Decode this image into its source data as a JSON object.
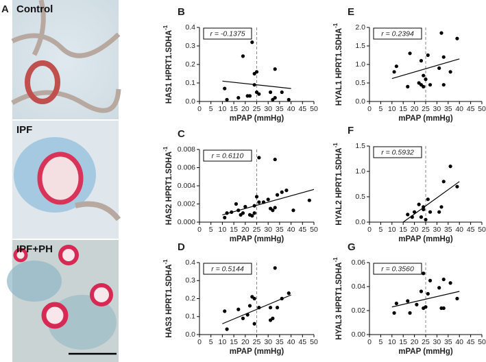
{
  "panel_a": {
    "letter": "A",
    "images": [
      "Control",
      "IPF",
      "IPF+PH"
    ]
  },
  "chart_data": [
    {
      "type": "scatter",
      "panel": "B",
      "ylabel": "HAS1 HPRT1.SDHA",
      "ylabel_sup": "-1",
      "xlabel": "mPAP (mmHg)",
      "annotation": "r = -0.1375",
      "color": "#000000",
      "x": [
        11,
        12,
        17,
        19,
        21,
        23,
        24,
        24,
        25,
        26,
        25,
        31,
        32,
        33,
        33,
        36,
        39,
        22
      ],
      "y": [
        0.07,
        0.01,
        0.02,
        0.245,
        0.03,
        0.32,
        0.15,
        0.09,
        0.16,
        0.04,
        0.05,
        0.05,
        0.01,
        0.175,
        0.02,
        0.05,
        0.01,
        0.03
      ],
      "fit": {
        "x": [
          10,
          40
        ],
        "y": [
          0.11,
          0.07
        ]
      },
      "ref_x": 25,
      "xlim": [
        0,
        50
      ],
      "ylim": [
        0,
        0.4
      ],
      "xticks": [
        0,
        5,
        10,
        15,
        20,
        25,
        30,
        35,
        40,
        45,
        50
      ],
      "yticks": [
        {
          "value": 0,
          "label": "0.0"
        },
        {
          "value": 0.1,
          "label": "0.1"
        },
        {
          "value": 0.2,
          "label": "0.2"
        },
        {
          "value": 0.3,
          "label": "0.3"
        },
        {
          "value": 0.4,
          "label": "0.4"
        }
      ]
    },
    {
      "type": "scatter",
      "panel": "C",
      "ylabel": "HAS2 HPRT1.SDHA",
      "ylabel_sup": "-1",
      "xlabel": "mPAP (mmHg)",
      "annotation": "r = 0.6110",
      "color": "#000000",
      "x": [
        11,
        12,
        14,
        16,
        17,
        18,
        19,
        20,
        22,
        23,
        24,
        24,
        25,
        26,
        26,
        30,
        31,
        32,
        33,
        33,
        34,
        36,
        38,
        41,
        48,
        28
      ],
      "y": [
        0.0005,
        0.001,
        0.0011,
        0.002,
        0.0013,
        0.0008,
        0.001,
        0.0017,
        0.0008,
        0.0007,
        0.001,
        0.0018,
        0.0028,
        0.0071,
        0.0022,
        0.0025,
        0.0015,
        0.0013,
        0.0069,
        0.0016,
        0.003,
        0.0033,
        0.0035,
        0.0013,
        0.0024,
        0.0022
      ],
      "fit": {
        "x": [
          10,
          50
        ],
        "y": [
          0.0008,
          0.0036
        ]
      },
      "ref_x": 25,
      "xlim": [
        0,
        50
      ],
      "ylim": [
        0,
        0.008
      ],
      "xticks": [
        0,
        5,
        10,
        15,
        20,
        25,
        30,
        35,
        40,
        45,
        50
      ],
      "yticks": [
        {
          "value": 0,
          "label": "0.000"
        },
        {
          "value": 0.002,
          "label": "0.002"
        },
        {
          "value": 0.004,
          "label": "0.004"
        },
        {
          "value": 0.006,
          "label": "0.006"
        },
        {
          "value": 0.008,
          "label": "0.008"
        }
      ]
    },
    {
      "type": "scatter",
      "panel": "D",
      "ylabel": "HAS3 HPRT1.SDHA",
      "ylabel_sup": "-1",
      "xlabel": "mPAP (mmHg)",
      "annotation": "r = 0.5144",
      "color": "#000000",
      "x": [
        11,
        12,
        17,
        19,
        21,
        22,
        23,
        24,
        24,
        26,
        31,
        31,
        32,
        33,
        34,
        36,
        39
      ],
      "y": [
        0.13,
        0.03,
        0.14,
        0.09,
        0.11,
        0.16,
        0.21,
        0.06,
        0.2,
        0.15,
        0.15,
        0.08,
        0.09,
        0.37,
        0.15,
        0.2,
        0.23
      ],
      "fit": {
        "x": [
          10,
          40
        ],
        "y": [
          0.06,
          0.22
        ]
      },
      "ref_x": 25,
      "xlim": [
        0,
        50
      ],
      "ylim": [
        0,
        0.4
      ],
      "xticks": [
        0,
        5,
        10,
        15,
        20,
        25,
        30,
        35,
        40,
        45,
        50
      ],
      "yticks": [
        {
          "value": 0,
          "label": "0.0"
        },
        {
          "value": 0.1,
          "label": "0.1"
        },
        {
          "value": 0.2,
          "label": "0.2"
        },
        {
          "value": 0.3,
          "label": "0.3"
        },
        {
          "value": 0.4,
          "label": "0.4"
        }
      ]
    },
    {
      "type": "scatter",
      "panel": "E",
      "ylabel": "HYAL1 HPRT1.SDHA",
      "ylabel_sup": "-1",
      "xlabel": "mPAP (mmHg)",
      "annotation": "r = 0.2394",
      "color": "#000000",
      "x": [
        11,
        12,
        17,
        18,
        22,
        23,
        23,
        24,
        24,
        25,
        26,
        27,
        31,
        32,
        33,
        33,
        36,
        39
      ],
      "y": [
        0.8,
        0.95,
        0.4,
        1.3,
        0.5,
        0.45,
        1.1,
        0.7,
        0.4,
        0.6,
        1.25,
        0.45,
        0.9,
        1.85,
        0.45,
        1.2,
        0.8,
        1.7
      ],
      "fit": {
        "x": [
          10,
          40
        ],
        "y": [
          0.62,
          1.15
        ]
      },
      "ref_x": 25,
      "xlim": [
        0,
        50
      ],
      "ylim": [
        0,
        2
      ],
      "xticks": [
        0,
        5,
        10,
        15,
        20,
        25,
        30,
        35,
        40,
        45,
        50
      ],
      "yticks": [
        {
          "value": 0,
          "label": "0.0"
        },
        {
          "value": 0.5,
          "label": "0.5"
        },
        {
          "value": 1,
          "label": "1.0"
        },
        {
          "value": 1.5,
          "label": "1.5"
        },
        {
          "value": 2,
          "label": "2.0"
        }
      ]
    },
    {
      "type": "scatter",
      "panel": "F",
      "ylabel": "HYAL2 HPRT1.SDHA",
      "ylabel_sup": "-1",
      "xlabel": "mPAP (mmHg)",
      "annotation": "r = 0.5932",
      "color": "#000000",
      "x": [
        17,
        19,
        20,
        22,
        23,
        24,
        24,
        26,
        27,
        31,
        32,
        33,
        36,
        39,
        25
      ],
      "y": [
        0.15,
        0.1,
        0.2,
        0.35,
        0.1,
        0.25,
        0.3,
        0.45,
        0.2,
        0.2,
        0.3,
        0.8,
        1.1,
        0.7,
        0.05
      ],
      "fit": {
        "x": [
          15,
          40
        ],
        "y": [
          0,
          0.8
        ]
      },
      "ref_x": 25,
      "xlim": [
        0,
        50
      ],
      "ylim": [
        0,
        1.5
      ],
      "xticks": [
        0,
        5,
        10,
        15,
        20,
        25,
        30,
        35,
        40,
        45,
        50
      ],
      "yticks": [
        {
          "value": 0,
          "label": "0.0"
        },
        {
          "value": 0.5,
          "label": "0.5"
        },
        {
          "value": 1,
          "label": "1.0"
        },
        {
          "value": 1.5,
          "label": "1.5"
        }
      ]
    },
    {
      "type": "scatter",
      "panel": "G",
      "ylabel": "HYAL3 HPRT1.SDHA",
      "ylabel_sup": "-1",
      "xlabel": "mPAP (mmHg)",
      "annotation": "r = 0.3560",
      "color": "#000000",
      "x": [
        11,
        12,
        17,
        18,
        21,
        23,
        24,
        24,
        25,
        26,
        27,
        31,
        32,
        33,
        33,
        36,
        39
      ],
      "y": [
        0.018,
        0.026,
        0.028,
        0.018,
        0.025,
        0.036,
        0.051,
        0.022,
        0.023,
        0.034,
        0.045,
        0.039,
        0.022,
        0.046,
        0.022,
        0.043,
        0.03
      ],
      "fit": {
        "x": [
          10,
          40
        ],
        "y": [
          0.023,
          0.036
        ]
      },
      "ref_x": 25,
      "xlim": [
        0,
        50
      ],
      "ylim": [
        0,
        0.06
      ],
      "xticks": [
        0,
        5,
        10,
        15,
        20,
        25,
        30,
        35,
        40,
        45,
        50
      ],
      "yticks": [
        {
          "value": 0,
          "label": "0.00"
        },
        {
          "value": 0.02,
          "label": "0.02"
        },
        {
          "value": 0.04,
          "label": "0.04"
        },
        {
          "value": 0.06,
          "label": "0.06"
        }
      ]
    }
  ]
}
